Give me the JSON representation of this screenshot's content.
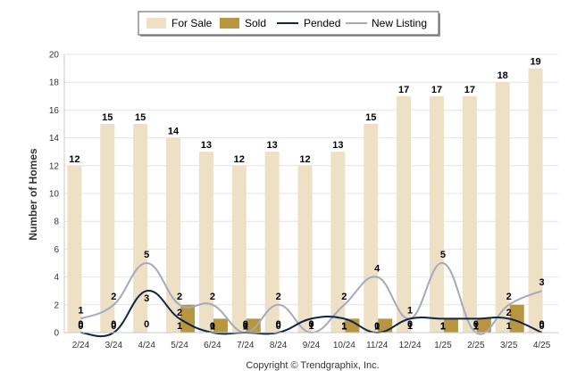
{
  "chart_data": {
    "type": "bar",
    "title": "",
    "xlabel": "",
    "ylabel": "Number of Homes",
    "ylim": [
      0,
      20
    ],
    "yticks": [
      0,
      2,
      4,
      6,
      8,
      10,
      12,
      14,
      16,
      18,
      20
    ],
    "grid": true,
    "legend_position": "top-center",
    "categories": [
      "2/24",
      "3/24",
      "4/24",
      "5/24",
      "6/24",
      "7/24",
      "8/24",
      "9/24",
      "10/24",
      "11/24",
      "12/24",
      "1/25",
      "2/25",
      "3/25",
      "4/25"
    ],
    "series": [
      {
        "name": "For Sale",
        "kind": "bar",
        "color": "#ede0c5",
        "values": [
          12,
          15,
          15,
          14,
          13,
          12,
          13,
          12,
          13,
          15,
          17,
          17,
          17,
          18,
          19
        ]
      },
      {
        "name": "Sold",
        "kind": "bar",
        "color": "#b8953f",
        "values": [
          0,
          0,
          0,
          2,
          1,
          1,
          0,
          0,
          1,
          1,
          0,
          1,
          1,
          2,
          0
        ]
      },
      {
        "name": "Pended",
        "kind": "line",
        "color": "#0e2446",
        "values": [
          0,
          0,
          3,
          1,
          0,
          0,
          0,
          1,
          1,
          0,
          1,
          1,
          1,
          1,
          0
        ]
      },
      {
        "name": "New Listing",
        "kind": "line",
        "color": "#a5a9bf",
        "values": [
          1,
          2,
          5,
          2,
          2,
          0,
          2,
          0,
          2,
          4,
          1,
          5,
          0,
          2,
          3
        ]
      }
    ]
  },
  "credit": "Copyright © Trendgraphix, Inc."
}
